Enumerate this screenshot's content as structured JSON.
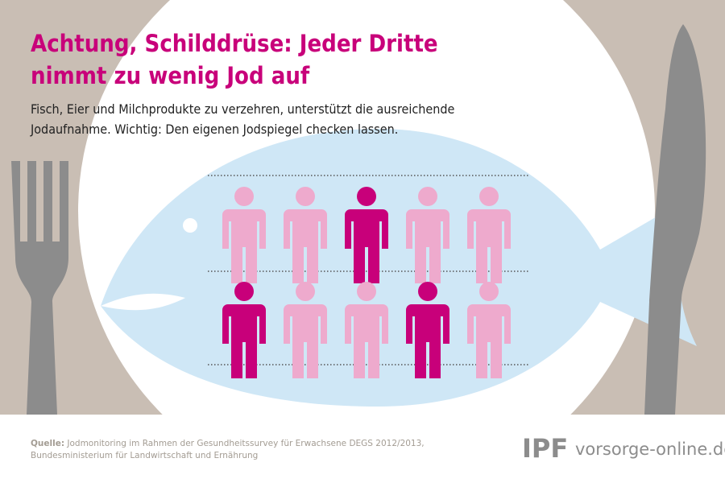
{
  "header": {
    "title_lines": [
      "Achtung, Schilddrüse: Jeder Dritte",
      "nimmt zu wenig Jod auf"
    ],
    "subtitle_lines": [
      "Fisch, Eier und Milchprodukte zu verzehren, unterstützt die ausreichende",
      "Jodaufnahme. Wichtig: Den eigenen Jodspiegel checken lassen."
    ]
  },
  "pictogram": {
    "highlight_color": "#c8007a",
    "base_color": "#eeaacd",
    "rows": [
      [
        false,
        false,
        true,
        false,
        false
      ],
      [
        true,
        false,
        false,
        true,
        false
      ]
    ]
  },
  "footer": {
    "source_label": "Quelle:",
    "source_lines": [
      "Jodmonitoring im Rahmen der Gesundheitssurvey für Erwachsene DEGS 2012/2013,",
      "Bundesministerium für Landwirtschaft und Ernährung"
    ],
    "logo": "IPF",
    "website": "vorsorge-online.de"
  }
}
